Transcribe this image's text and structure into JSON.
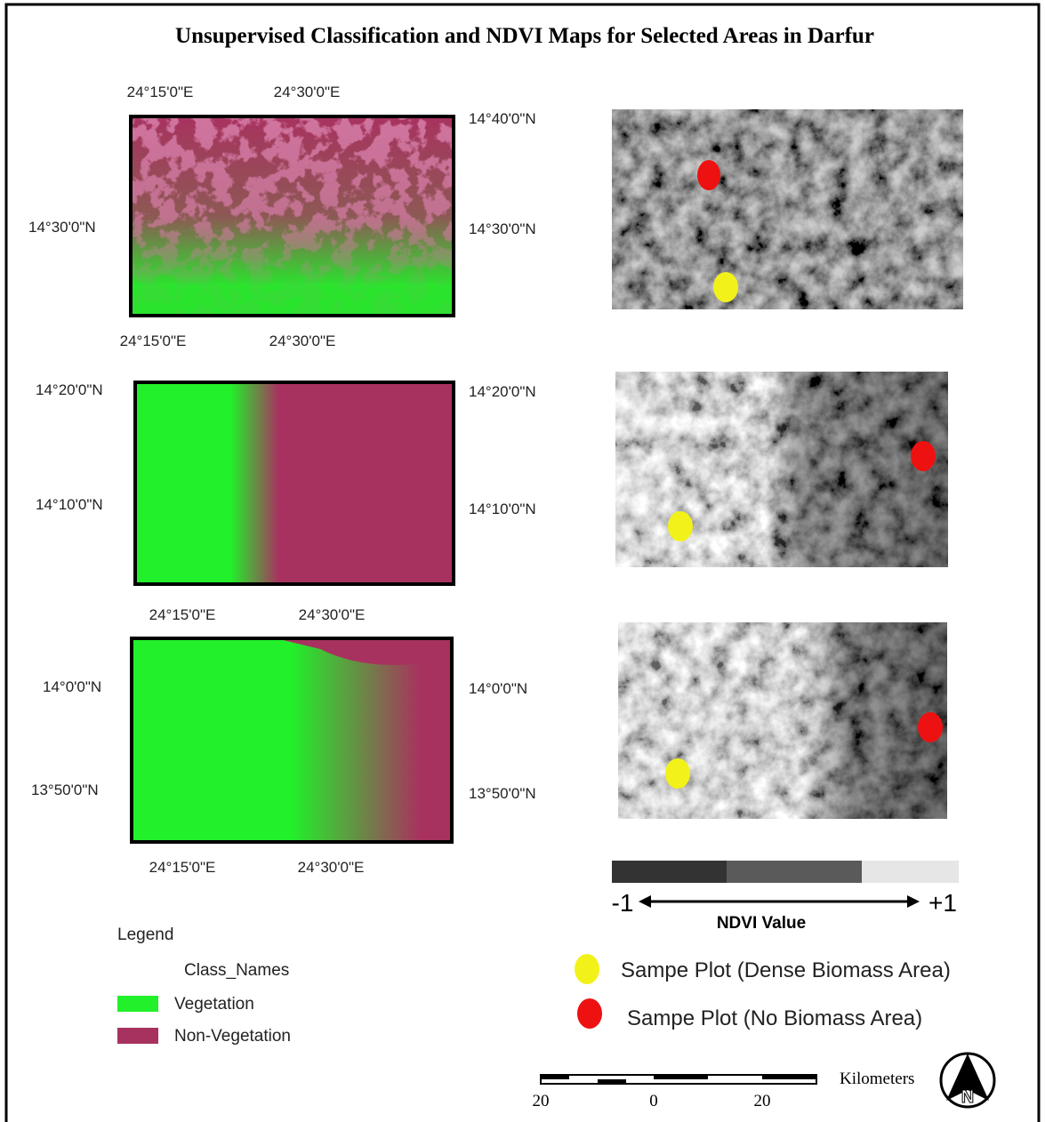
{
  "title": "Unsupervised Classification and NDVI Maps for Selected Areas in Darfur",
  "classification_maps": [
    {
      "top_labels": [
        "24°15'0\"E",
        "24°30'0\"E"
      ],
      "left_labels": [
        "14°30'0\"N"
      ],
      "right_labels": [
        "14°40'0\"N",
        "14°30'0\"N"
      ],
      "bottom_labels": [
        "24°15'0\"E",
        "24°30'0\"E"
      ]
    },
    {
      "left_labels": [
        "14°20'0\"N",
        "14°10'0\"N"
      ],
      "right_labels": [
        "14°20'0\"N",
        "14°10'0\"N"
      ]
    },
    {
      "top_labels": [
        "24°15'0\"E",
        "24°30'0\"E"
      ],
      "left_labels": [
        "14°0'0\"N",
        "13°50'0\"N"
      ],
      "right_labels": [
        "14°0'0\"N",
        "13°50'0\"N"
      ],
      "bottom_labels": [
        "24°15'0\"E",
        "24°30'0\"E"
      ]
    }
  ],
  "ndvi_scale": {
    "min_label": "-1",
    "max_label": "+1",
    "title": "NDVI Value"
  },
  "legend": {
    "title": "Legend",
    "field": "Class_Names",
    "classes": [
      "Vegetation",
      "Non-Vegetation"
    ]
  },
  "sample_legend": [
    "Sampe Plot (Dense Biomass Area)",
    "Sampe Plot (No Biomass Area)"
  ],
  "scale_bar": {
    "ticks": [
      "20",
      "0",
      "20"
    ],
    "unit": "Kilometers"
  },
  "north_arrow": "N"
}
